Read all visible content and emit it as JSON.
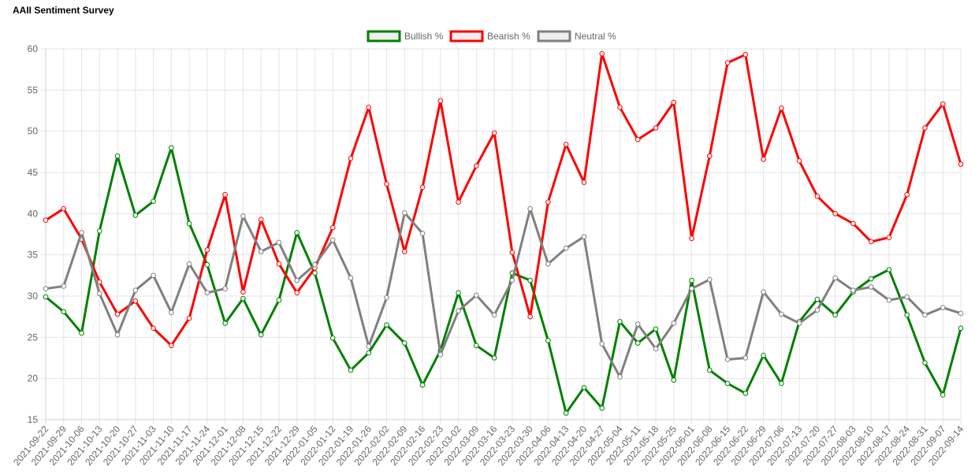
{
  "page": {
    "title": "AAII Sentiment Survey"
  },
  "chart_data": {
    "type": "line",
    "title": "AAII Sentiment Survey",
    "xlabel": "",
    "ylabel": "",
    "ylim": [
      15,
      60
    ],
    "y_ticks": [
      15,
      20,
      25,
      30,
      35,
      40,
      45,
      50,
      55,
      60
    ],
    "grid": true,
    "legend_position": "top-center",
    "categories": [
      "2021-09-22",
      "2021-09-29",
      "2021-10-06",
      "2021-10-13",
      "2021-10-20",
      "2021-10-27",
      "2021-11-03",
      "2021-11-10",
      "2021-11-17",
      "2021-11-24",
      "2021-12-01",
      "2021-12-08",
      "2021-12-15",
      "2021-12-22",
      "2021-12-29",
      "2022-01-05",
      "2022-01-12",
      "2022-01-19",
      "2022-01-26",
      "2022-02-02",
      "2022-02-09",
      "2022-02-16",
      "2022-02-23",
      "2022-03-02",
      "2022-03-09",
      "2022-03-16",
      "2022-03-23",
      "2022-03-30",
      "2022-04-06",
      "2022-04-13",
      "2022-04-20",
      "2022-04-27",
      "2022-05-04",
      "2022-05-11",
      "2022-05-18",
      "2022-05-25",
      "2022-06-01",
      "2022-06-08",
      "2022-06-15",
      "2022-06-22",
      "2022-06-29",
      "2022-07-06",
      "2022-07-13",
      "2022-07-20",
      "2022-07-27",
      "2022-08-03",
      "2022-08-10",
      "2022-08-17",
      "2022-08-24",
      "2022-08-31",
      "2022-09-07",
      "2022-09-14"
    ],
    "series": [
      {
        "name": "Bullish %",
        "color": "#008000",
        "values": [
          29.9,
          28.1,
          25.5,
          37.9,
          47.0,
          39.8,
          41.5,
          48.0,
          38.8,
          33.8,
          26.7,
          29.7,
          25.3,
          29.5,
          37.7,
          32.8,
          24.9,
          21.0,
          23.1,
          26.5,
          24.3,
          19.2,
          23.4,
          30.4,
          24.0,
          22.5,
          32.8,
          31.9,
          24.6,
          15.8,
          18.9,
          16.4,
          26.9,
          24.3,
          26.0,
          19.8,
          31.9,
          21.0,
          19.4,
          18.2,
          22.8,
          19.4,
          26.9,
          29.6,
          27.7,
          30.5,
          32.1,
          33.2,
          27.7,
          21.9,
          18.0,
          26.1
        ]
      },
      {
        "name": "Bearish %",
        "color": "#ff0000",
        "values": [
          39.2,
          40.6,
          36.9,
          31.7,
          27.8,
          29.4,
          26.1,
          24.0,
          27.3,
          35.6,
          42.3,
          30.5,
          39.3,
          33.9,
          30.4,
          33.4,
          38.3,
          46.7,
          52.9,
          43.6,
          35.4,
          43.2,
          53.7,
          41.4,
          45.8,
          49.8,
          35.3,
          27.5,
          41.4,
          48.4,
          43.8,
          59.4,
          52.9,
          49.0,
          50.4,
          53.5,
          37.0,
          47.0,
          58.3,
          59.3,
          46.6,
          52.8,
          46.4,
          42.1,
          40.0,
          38.8,
          36.6,
          37.1,
          42.3,
          50.4,
          53.3,
          46.0
        ]
      },
      {
        "name": "Neutral %",
        "color": "#808080",
        "values": [
          30.9,
          31.2,
          37.7,
          30.3,
          25.3,
          30.7,
          32.5,
          28.0,
          33.9,
          30.4,
          30.9,
          39.7,
          35.4,
          36.5,
          31.9,
          33.8,
          36.8,
          32.2,
          23.9,
          29.8,
          40.1,
          37.6,
          22.9,
          28.2,
          30.1,
          27.7,
          31.9,
          40.6,
          33.9,
          35.8,
          37.2,
          24.2,
          20.2,
          26.6,
          23.6,
          26.7,
          30.9,
          32.0,
          22.3,
          22.5,
          30.5,
          27.8,
          26.7,
          28.3,
          32.2,
          30.7,
          31.1,
          29.5,
          29.9,
          27.7,
          28.6,
          27.9
        ]
      }
    ]
  }
}
